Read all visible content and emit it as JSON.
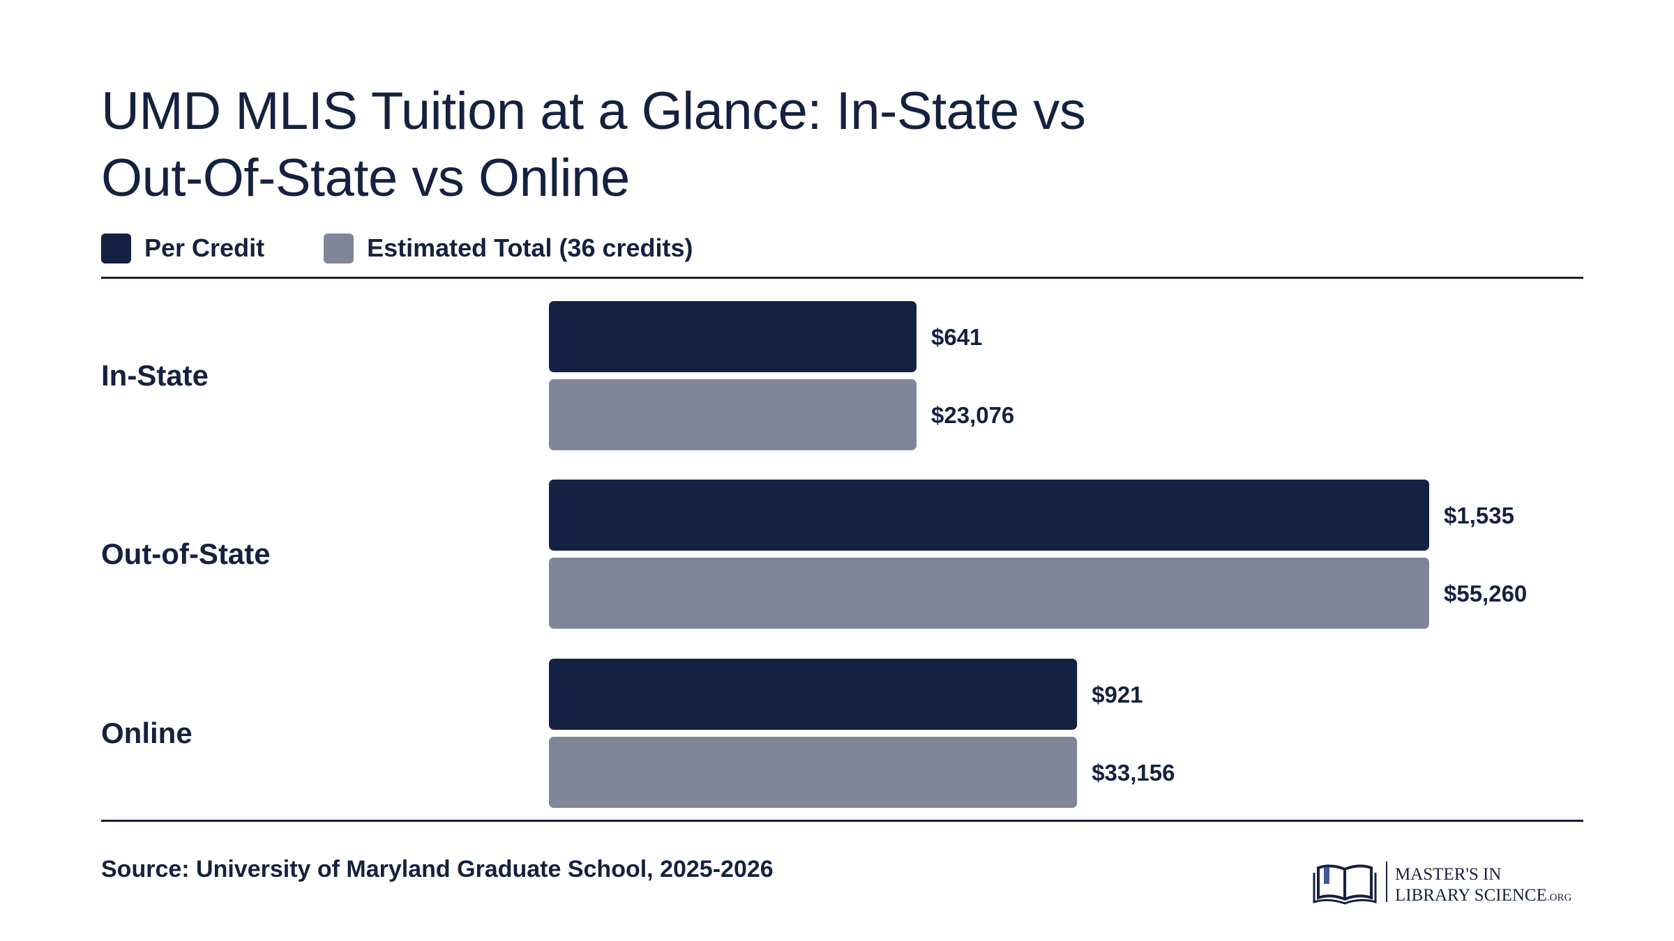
{
  "title_line1": "UMD MLIS Tuition at a Glance: In-State vs",
  "title_line2": "Out-Of-State vs Online",
  "colors": {
    "per_credit": "#132143",
    "total": "#7f8699",
    "text": "#14213f"
  },
  "legend": {
    "per_credit": "Per Credit",
    "total": "Estimated Total (36 credits)"
  },
  "chart_data": {
    "type": "bar",
    "orientation": "horizontal",
    "title": "UMD MLIS Tuition at a Glance: In-State vs Out-Of-State vs Online",
    "categories": [
      "In-State",
      "Out-of-State",
      "Online"
    ],
    "series": [
      {
        "name": "Per Credit",
        "values": [
          641,
          1535,
          921
        ],
        "labels": [
          "$641",
          "$1,535",
          "$921"
        ]
      },
      {
        "name": "Estimated Total (36 credits)",
        "values": [
          23076,
          55260,
          33156
        ],
        "labels": [
          "$23,076",
          "$55,260",
          "$33,156"
        ]
      }
    ],
    "xlabel": "",
    "ylabel": "",
    "grid": false,
    "legend_position": "top-left"
  },
  "source": "Source: University of Maryland Graduate School, 2025-2026",
  "logo": {
    "line1": "MASTER'S IN",
    "line2": "LIBRARY SCIENCE",
    "suffix": ".ORG",
    "icon": "open-book-icon"
  }
}
